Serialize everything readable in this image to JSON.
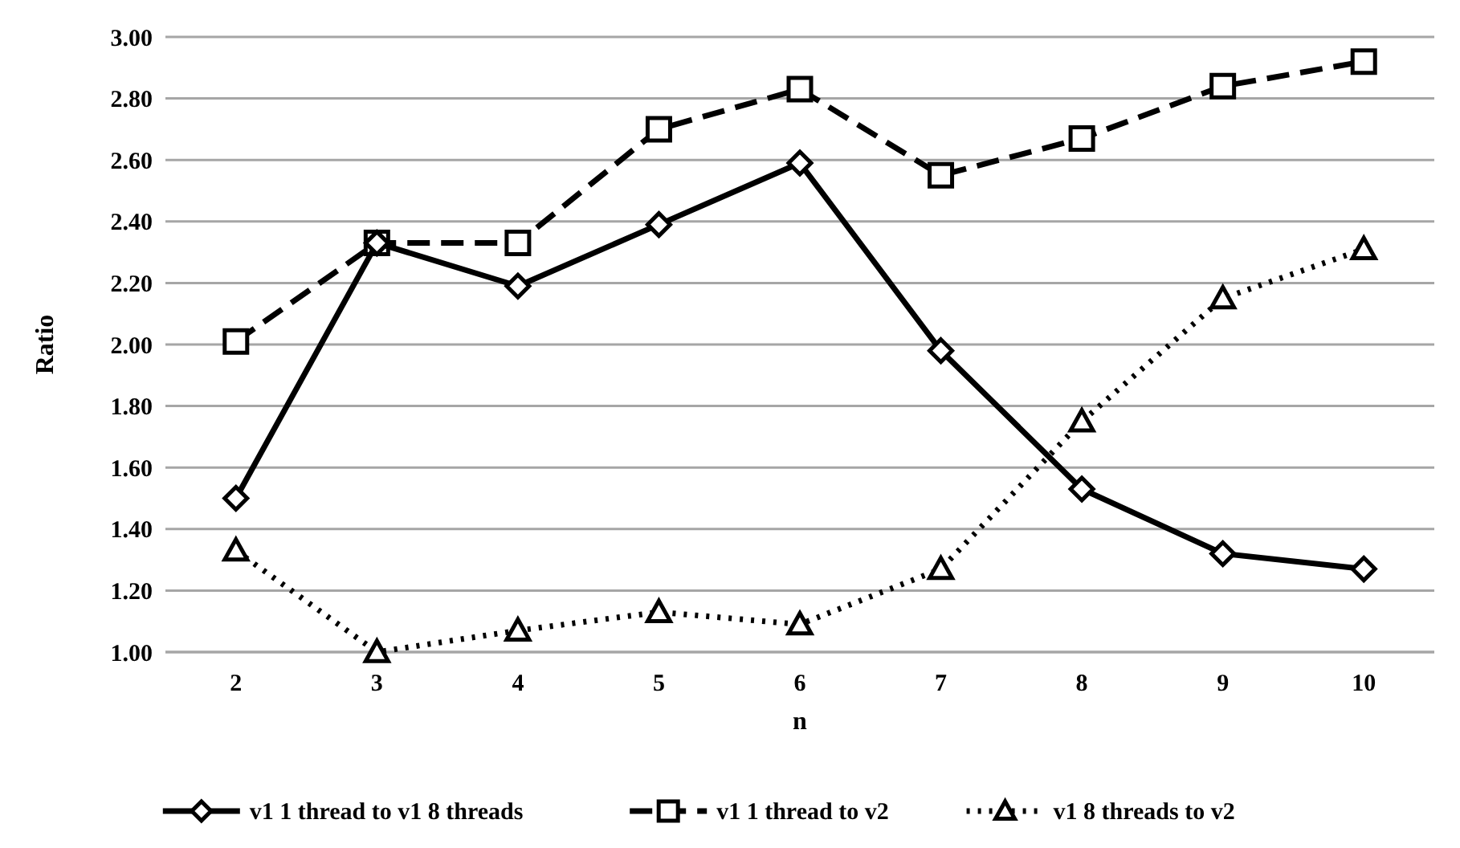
{
  "chart_data": {
    "type": "line",
    "xlabel": "n",
    "ylabel": "Ratio",
    "categories": [
      "2",
      "3",
      "4",
      "5",
      "6",
      "7",
      "8",
      "9",
      "10"
    ],
    "ylim": [
      1,
      3
    ],
    "yticks": [
      {
        "value": 1,
        "label": "1.00"
      },
      {
        "value": 1.2,
        "label": "1.20"
      },
      {
        "value": 1.4,
        "label": "1.40"
      },
      {
        "value": 1.6,
        "label": "1.60"
      },
      {
        "value": 1.8,
        "label": "1.80"
      },
      {
        "value": 2,
        "label": "2.00"
      },
      {
        "value": 2.2,
        "label": "2.20"
      },
      {
        "value": 2.4,
        "label": "2.40"
      },
      {
        "value": 2.6,
        "label": "2.60"
      },
      {
        "value": 2.8,
        "label": "2.80"
      },
      {
        "value": 3,
        "label": "3.00"
      }
    ],
    "grid": "y",
    "legend": "bottom",
    "series": [
      {
        "name": "v1 1 thread to v1 8 threads",
        "color": "#000000",
        "marker": "diamond",
        "line_style": "solid",
        "values": [
          1.5,
          2.33,
          2.19,
          2.39,
          2.59,
          1.98,
          1.53,
          1.32,
          1.27
        ]
      },
      {
        "name": "v1 1 thread to v2",
        "color": "#000000",
        "marker": "square",
        "line_style": "dashed",
        "values": [
          2.01,
          2.33,
          2.33,
          2.7,
          2.83,
          2.55,
          2.67,
          2.84,
          2.92
        ]
      },
      {
        "name": "v1 8 threads to v2",
        "color": "#000000",
        "marker": "triangle",
        "line_style": "dotted",
        "values": [
          1.33,
          1.0,
          1.07,
          1.13,
          1.09,
          1.27,
          1.75,
          2.15,
          2.31
        ]
      }
    ]
  }
}
